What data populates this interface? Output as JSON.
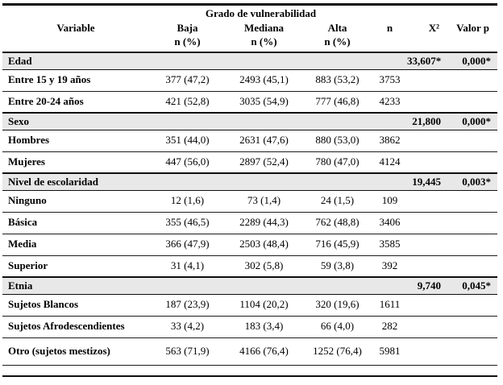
{
  "table": {
    "group_header": "Grado de vulnerabilidad",
    "columns": {
      "variable": "Variable",
      "baja": "Baja",
      "mediana": "Mediana",
      "alta": "Alta",
      "n": "n",
      "chi2": "X²",
      "p": "Valor p"
    },
    "subheader_n_pct": "n (%)",
    "colors": {
      "section_row_bg": "#e8e8e8",
      "rule_color": "#0f0f0f"
    },
    "rows": [
      {
        "type": "section",
        "label": "Edad",
        "chi2": "33,607*",
        "p": "0,000*"
      },
      {
        "type": "data",
        "label": "Entre 15 y 19 años",
        "baja": "377 (47,2)",
        "mediana": "2493 (45,1)",
        "alta": "883 (53,2)",
        "n": "3753"
      },
      {
        "type": "data",
        "label": "Entre 20-24 años",
        "baja": "421 (52,8)",
        "mediana": "3035 (54,9)",
        "alta": "777 (46,8)",
        "n": "4233"
      },
      {
        "type": "section",
        "label": "Sexo",
        "chi2": "21,800",
        "p": "0,000*"
      },
      {
        "type": "data",
        "label": "Hombres",
        "baja": "351 (44,0)",
        "mediana": "2631 (47,6)",
        "alta": "880 (53,0)",
        "n": "3862"
      },
      {
        "type": "data",
        "label": "Mujeres",
        "baja": "447 (56,0)",
        "mediana": "2897 (52,4)",
        "alta": "780 (47,0)",
        "n": "4124"
      },
      {
        "type": "section",
        "label": "Nivel de escolaridad",
        "chi2": "19,445",
        "p": "0,003*"
      },
      {
        "type": "data",
        "label": "Ninguno",
        "baja": "12 (1,6)",
        "mediana": "73 (1,4)",
        "alta": "24 (1,5)",
        "n": "109"
      },
      {
        "type": "data",
        "label": "Básica",
        "baja": "355 (46,5)",
        "mediana": "2289 (44,3)",
        "alta": "762 (48,8)",
        "n": "3406"
      },
      {
        "type": "data",
        "label": "Media",
        "baja": "366 (47,9)",
        "mediana": "2503 (48,4)",
        "alta": "716 (45,9)",
        "n": "3585"
      },
      {
        "type": "data",
        "label": "Superior",
        "baja": "31 (4,1)",
        "mediana": "302 (5,8)",
        "alta": "59 (3,8)",
        "n": "392"
      },
      {
        "type": "section",
        "label": "Etnia",
        "chi2": "9,740",
        "p": "0,045*"
      },
      {
        "type": "data",
        "label": "Sujetos Blancos",
        "baja": "187 (23,9)",
        "mediana": "1104 (20,2)",
        "alta": "320 (19,6)",
        "n": "1611"
      },
      {
        "type": "data",
        "label": "Sujetos Afrodescendientes",
        "baja": "33 (4,2)",
        "mediana": "183 (3,4)",
        "alta": "66 (4,0)",
        "n": "282"
      },
      {
        "type": "data",
        "label": "Otro (sujetos mestizos)",
        "baja": "563 (71,9)",
        "mediana": "4166 (76,4)",
        "alta": "1252 (76,4)",
        "n": "5981"
      }
    ]
  }
}
